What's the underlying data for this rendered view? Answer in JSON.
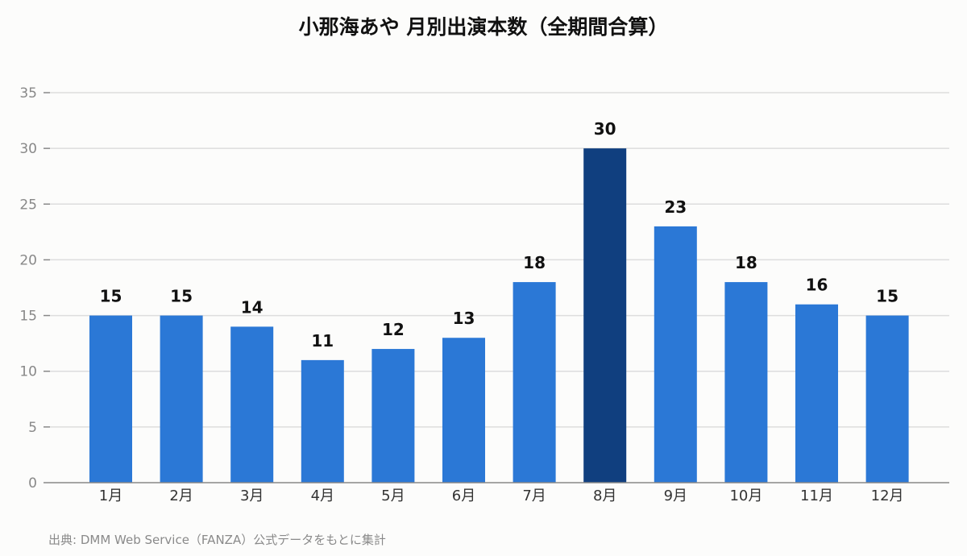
{
  "chart_data": {
    "type": "bar",
    "title": "小那海あや 月別出演本数（全期間合算）",
    "categories": [
      "1月",
      "2月",
      "3月",
      "4月",
      "5月",
      "6月",
      "7月",
      "8月",
      "9月",
      "10月",
      "11月",
      "12月"
    ],
    "values": [
      15,
      15,
      14,
      11,
      12,
      13,
      18,
      30,
      23,
      18,
      16,
      15
    ],
    "ylim": [
      0,
      35
    ],
    "yticks": [
      0,
      5,
      10,
      15,
      20,
      25,
      30,
      35
    ],
    "xlabel": "",
    "ylabel": "",
    "grid": true,
    "highlight_index": 7,
    "colors": {
      "bar": "#2b78d6",
      "highlight": "#103f7f",
      "grid": "#dddddd",
      "axis": "#888888",
      "tick_label": "#888888",
      "value_label": "#111111"
    },
    "source": "出典: DMM Web Service（FANZA）公式データをもとに集計"
  }
}
